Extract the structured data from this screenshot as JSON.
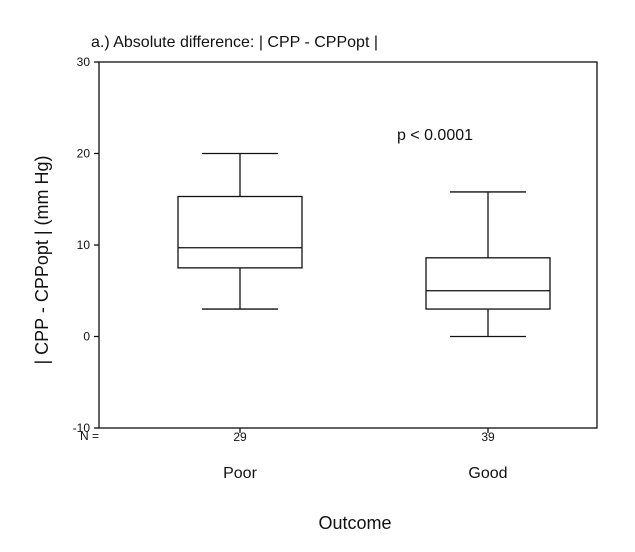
{
  "chart_data": {
    "type": "box",
    "title": "a.) Absolute difference: | CPP - CPPopt |",
    "ylabel": "| CPP - CPPopt | (mm Hg)",
    "xlabel": "Outcome",
    "ylim": [
      -10,
      30
    ],
    "yticks": [
      -10,
      0,
      10,
      20,
      30
    ],
    "ytick_labels": [
      "-10",
      "0",
      "10",
      "20",
      "30"
    ],
    "categories": [
      "Poor",
      "Good"
    ],
    "n_label": "N =",
    "n_values": [
      "29",
      "39"
    ],
    "boxes": [
      {
        "category": "Poor",
        "min": 3,
        "q1": 7.5,
        "median": 9.7,
        "q3": 15.3,
        "max": 20
      },
      {
        "category": "Good",
        "min": 0,
        "q1": 3,
        "median": 5,
        "q3": 8.6,
        "max": 15.8
      }
    ],
    "annotation": "p < 0.0001",
    "annotation_position": {
      "category_index": 1,
      "y": 21.8
    }
  }
}
